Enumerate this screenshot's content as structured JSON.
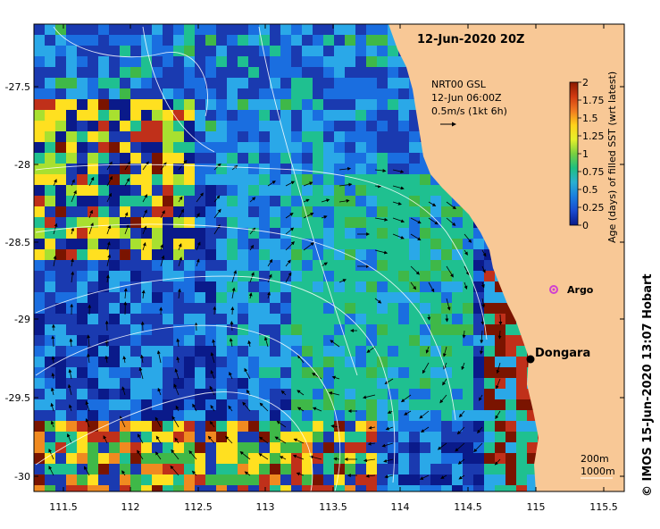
{
  "map": {
    "title": "12-Jun-2020 20Z",
    "legend_block": {
      "line1": "NRT00 GSL",
      "line2": "12-Jun 06:00Z",
      "line3": "0.5m/s (1kt 6h)"
    },
    "colorbar": {
      "label": "Age (days) of filled SST (wrt latest)",
      "ticks": [
        "2",
        "1.75",
        "1.5",
        "1.25",
        "1",
        "0.75",
        "0.5",
        "0.25",
        "0"
      ],
      "colors": [
        "#8b1a00",
        "#d23a10",
        "#f07a20",
        "#ffd21a",
        "#e6f02a",
        "#78d040",
        "#1fc080",
        "#2ab0d0",
        "#1a7ee0",
        "#1a4ad0",
        "#0a1a8a"
      ]
    },
    "y_ticks": [
      "-27.5",
      "-28",
      "-28.5",
      "-29",
      "-29.5",
      "-30"
    ],
    "x_ticks": [
      "111.5",
      "112",
      "112.5",
      "113",
      "113.5",
      "114",
      "114.5",
      "115",
      "115.5"
    ],
    "places": {
      "argo": "Argo",
      "dongara": "Dongara"
    },
    "depth_labels": {
      "line1": "200m",
      "line2": "1000m"
    },
    "credit": "© IMOS 15-Jun-2020 13:07 Hobart",
    "colors": {
      "land": "#f8c896",
      "ocean_deep": "#0a1a8a",
      "argo": "#d040d0",
      "contour": "#ffffff"
    }
  }
}
